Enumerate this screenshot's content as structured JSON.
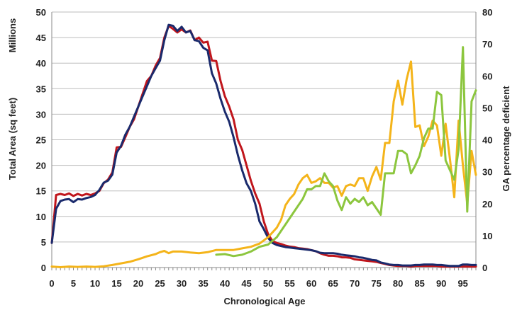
{
  "chart_data": {
    "type": "line",
    "xlabel": "Chronological Age",
    "ylabel": "Total Area (sq feet)",
    "ylabel_units": "Millions",
    "y2label": "GA percentage deficient",
    "xlim": [
      0,
      98
    ],
    "ylim": [
      0,
      50
    ],
    "y2lim": [
      0,
      80
    ],
    "x_ticks": [
      0,
      5,
      10,
      15,
      20,
      25,
      30,
      35,
      40,
      45,
      50,
      55,
      60,
      65,
      70,
      75,
      80,
      85,
      90,
      95
    ],
    "y_ticks": [
      0,
      5,
      10,
      15,
      20,
      25,
      30,
      35,
      40,
      45,
      50
    ],
    "y2_ticks": [
      0,
      10,
      20,
      30,
      40,
      50,
      60,
      70,
      80
    ],
    "grid": "horizontal",
    "legend": "none",
    "series": [
      {
        "color": "#c0161c",
        "axis": "left",
        "points": [
          [
            0,
            4.8
          ],
          [
            1,
            14.2
          ],
          [
            2,
            14.4
          ],
          [
            3,
            14.2
          ],
          [
            4,
            14.5
          ],
          [
            5,
            14.0
          ],
          [
            6,
            14.4
          ],
          [
            7,
            14.1
          ],
          [
            8,
            14.4
          ],
          [
            9,
            14.2
          ],
          [
            10,
            14.5
          ],
          [
            11,
            15.0
          ],
          [
            12,
            16.5
          ],
          [
            13,
            17.2
          ],
          [
            14,
            18.6
          ],
          [
            15,
            23.5
          ],
          [
            16,
            23.6
          ],
          [
            17,
            25.5
          ],
          [
            18,
            27.5
          ],
          [
            19,
            29.0
          ],
          [
            20,
            31.5
          ],
          [
            21,
            34.0
          ],
          [
            22,
            36.5
          ],
          [
            23,
            37.5
          ],
          [
            24,
            39.5
          ],
          [
            25,
            41.0
          ],
          [
            26,
            45.0
          ],
          [
            27,
            47.3
          ],
          [
            28,
            46.7
          ],
          [
            29,
            46.0
          ],
          [
            30,
            46.6
          ],
          [
            31,
            46.0
          ],
          [
            32,
            46.4
          ],
          [
            33,
            44.5
          ],
          [
            34,
            45.0
          ],
          [
            35,
            44.0
          ],
          [
            36,
            44.2
          ],
          [
            37,
            40.5
          ],
          [
            38,
            40.4
          ],
          [
            39,
            36.5
          ],
          [
            40,
            33.5
          ],
          [
            41,
            31.5
          ],
          [
            42,
            29.0
          ],
          [
            43,
            25.0
          ],
          [
            44,
            23.0
          ],
          [
            45,
            20.0
          ],
          [
            46,
            17.0
          ],
          [
            47,
            14.5
          ],
          [
            48,
            12.5
          ],
          [
            49,
            9.0
          ],
          [
            50,
            6.5
          ],
          [
            51,
            5.2
          ],
          [
            52,
            4.8
          ],
          [
            53,
            4.6
          ],
          [
            54,
            4.3
          ],
          [
            55,
            4.1
          ],
          [
            56,
            4.0
          ],
          [
            57,
            3.8
          ],
          [
            58,
            3.7
          ],
          [
            59,
            3.6
          ],
          [
            60,
            3.4
          ],
          [
            61,
            3.2
          ],
          [
            62,
            2.8
          ],
          [
            63,
            2.5
          ],
          [
            64,
            2.3
          ],
          [
            65,
            2.3
          ],
          [
            66,
            2.2
          ],
          [
            67,
            2.0
          ],
          [
            68,
            2.0
          ],
          [
            69,
            1.9
          ],
          [
            70,
            1.6
          ],
          [
            71,
            1.5
          ],
          [
            72,
            1.4
          ],
          [
            73,
            1.3
          ],
          [
            74,
            1.2
          ],
          [
            75,
            1.1
          ],
          [
            76,
            0.9
          ],
          [
            77,
            0.7
          ],
          [
            78,
            0.5
          ],
          [
            79,
            0.4
          ],
          [
            80,
            0.3
          ],
          [
            81,
            0.3
          ],
          [
            82,
            0.3
          ],
          [
            83,
            0.2
          ],
          [
            84,
            0.3
          ],
          [
            85,
            0.3
          ],
          [
            86,
            0.3
          ],
          [
            87,
            0.3
          ],
          [
            88,
            0.3
          ],
          [
            89,
            0.3
          ],
          [
            90,
            0.2
          ],
          [
            91,
            0.2
          ],
          [
            92,
            0.2
          ],
          [
            93,
            0.2
          ],
          [
            94,
            0.2
          ],
          [
            95,
            0.2
          ],
          [
            96,
            0.2
          ],
          [
            97,
            0.2
          ],
          [
            98,
            0.2
          ]
        ]
      },
      {
        "color": "#1a2a6c",
        "axis": "left",
        "points": [
          [
            0,
            4.8
          ],
          [
            1,
            11.5
          ],
          [
            2,
            13.0
          ],
          [
            3,
            13.3
          ],
          [
            4,
            13.4
          ],
          [
            5,
            12.8
          ],
          [
            6,
            13.4
          ],
          [
            7,
            13.3
          ],
          [
            8,
            13.6
          ],
          [
            9,
            13.8
          ],
          [
            10,
            14.2
          ],
          [
            11,
            15.2
          ],
          [
            12,
            16.6
          ],
          [
            13,
            17.0
          ],
          [
            14,
            18.2
          ],
          [
            15,
            22.5
          ],
          [
            16,
            23.8
          ],
          [
            17,
            26.0
          ],
          [
            18,
            27.5
          ],
          [
            19,
            29.5
          ],
          [
            20,
            31.5
          ],
          [
            21,
            33.5
          ],
          [
            22,
            35.5
          ],
          [
            23,
            37.5
          ],
          [
            24,
            39.0
          ],
          [
            25,
            40.5
          ],
          [
            26,
            44.5
          ],
          [
            27,
            47.5
          ],
          [
            28,
            47.3
          ],
          [
            29,
            46.3
          ],
          [
            30,
            47.1
          ],
          [
            31,
            46.0
          ],
          [
            32,
            46.3
          ],
          [
            33,
            44.5
          ],
          [
            34,
            44.3
          ],
          [
            35,
            43.0
          ],
          [
            36,
            42.5
          ],
          [
            37,
            38.0
          ],
          [
            38,
            36.0
          ],
          [
            39,
            33.0
          ],
          [
            40,
            30.5
          ],
          [
            41,
            28.5
          ],
          [
            42,
            25.5
          ],
          [
            43,
            22.0
          ],
          [
            44,
            19.0
          ],
          [
            45,
            16.5
          ],
          [
            46,
            15.0
          ],
          [
            47,
            12.5
          ],
          [
            48,
            9.0
          ],
          [
            49,
            7.5
          ],
          [
            50,
            5.8
          ],
          [
            51,
            4.8
          ],
          [
            52,
            4.4
          ],
          [
            53,
            4.2
          ],
          [
            54,
            4.0
          ],
          [
            55,
            3.9
          ],
          [
            56,
            3.8
          ],
          [
            57,
            3.7
          ],
          [
            58,
            3.6
          ],
          [
            59,
            3.5
          ],
          [
            60,
            3.4
          ],
          [
            61,
            3.2
          ],
          [
            62,
            2.9
          ],
          [
            63,
            2.8
          ],
          [
            64,
            2.8
          ],
          [
            65,
            2.8
          ],
          [
            66,
            2.7
          ],
          [
            67,
            2.5
          ],
          [
            68,
            2.4
          ],
          [
            69,
            2.3
          ],
          [
            70,
            2.2
          ],
          [
            71,
            2.0
          ],
          [
            72,
            1.9
          ],
          [
            73,
            1.7
          ],
          [
            74,
            1.5
          ],
          [
            75,
            1.4
          ],
          [
            76,
            1.0
          ],
          [
            77,
            0.8
          ],
          [
            78,
            0.6
          ],
          [
            79,
            0.5
          ],
          [
            80,
            0.5
          ],
          [
            81,
            0.4
          ],
          [
            82,
            0.4
          ],
          [
            83,
            0.4
          ],
          [
            84,
            0.5
          ],
          [
            85,
            0.5
          ],
          [
            86,
            0.6
          ],
          [
            87,
            0.6
          ],
          [
            88,
            0.6
          ],
          [
            89,
            0.5
          ],
          [
            90,
            0.5
          ],
          [
            91,
            0.4
          ],
          [
            92,
            0.3
          ],
          [
            93,
            0.3
          ],
          [
            94,
            0.3
          ],
          [
            95,
            0.6
          ],
          [
            96,
            0.6
          ],
          [
            97,
            0.5
          ],
          [
            98,
            0.5
          ]
        ]
      },
      {
        "color": "#f4b41a",
        "axis": "right",
        "points": [
          [
            0,
            0.3
          ],
          [
            2,
            0.1
          ],
          [
            4,
            0.3
          ],
          [
            6,
            0.2
          ],
          [
            8,
            0.3
          ],
          [
            10,
            0.2
          ],
          [
            12,
            0.4
          ],
          [
            14,
            0.8
          ],
          [
            16,
            1.3
          ],
          [
            18,
            1.8
          ],
          [
            20,
            2.6
          ],
          [
            22,
            3.5
          ],
          [
            24,
            4.2
          ],
          [
            25,
            4.8
          ],
          [
            26,
            5.2
          ],
          [
            27,
            4.5
          ],
          [
            28,
            5.0
          ],
          [
            30,
            5.0
          ],
          [
            32,
            4.7
          ],
          [
            34,
            4.5
          ],
          [
            36,
            4.8
          ],
          [
            38,
            5.5
          ],
          [
            40,
            5.5
          ],
          [
            42,
            5.5
          ],
          [
            44,
            6.0
          ],
          [
            46,
            6.5
          ],
          [
            48,
            7.5
          ],
          [
            50,
            9.5
          ],
          [
            52,
            12.5
          ],
          [
            53,
            15.0
          ],
          [
            54,
            19.5
          ],
          [
            55,
            21.5
          ],
          [
            56,
            23.0
          ],
          [
            57,
            26.0
          ],
          [
            58,
            28.0
          ],
          [
            59,
            29.0
          ],
          [
            60,
            26.5
          ],
          [
            61,
            27.0
          ],
          [
            62,
            28.0
          ],
          [
            63,
            26.5
          ],
          [
            64,
            26.5
          ],
          [
            65,
            25.0
          ],
          [
            66,
            25.5
          ],
          [
            67,
            22.5
          ],
          [
            68,
            25.5
          ],
          [
            69,
            26.0
          ],
          [
            70,
            25.5
          ],
          [
            71,
            28.0
          ],
          [
            72,
            28.0
          ],
          [
            73,
            24.0
          ],
          [
            74,
            28.5
          ],
          [
            75,
            31.5
          ],
          [
            76,
            27.5
          ],
          [
            77,
            39.0
          ],
          [
            78,
            39.0
          ],
          [
            79,
            52.0
          ],
          [
            80,
            58.5
          ],
          [
            81,
            51.0
          ],
          [
            82,
            59.0
          ],
          [
            83,
            64.5
          ],
          [
            84,
            44.0
          ],
          [
            85,
            44.5
          ],
          [
            86,
            38.0
          ],
          [
            87,
            41.0
          ],
          [
            88,
            46.0
          ],
          [
            89,
            44.5
          ],
          [
            90,
            35.0
          ],
          [
            91,
            45.0
          ],
          [
            92,
            34.0
          ],
          [
            93,
            22.0
          ],
          [
            94,
            46.0
          ],
          [
            95,
            32.0
          ],
          [
            96,
            20.0
          ],
          [
            97,
            36.5
          ],
          [
            98,
            29.0
          ]
        ]
      },
      {
        "color": "#8cc63e",
        "axis": "right",
        "points": [
          [
            38,
            4.0
          ],
          [
            40,
            4.2
          ],
          [
            42,
            3.6
          ],
          [
            44,
            4.0
          ],
          [
            46,
            5.0
          ],
          [
            48,
            6.5
          ],
          [
            50,
            7.2
          ],
          [
            52,
            9.5
          ],
          [
            54,
            13.5
          ],
          [
            56,
            17.5
          ],
          [
            58,
            21.5
          ],
          [
            59,
            24.5
          ],
          [
            60,
            24.5
          ],
          [
            61,
            25.5
          ],
          [
            62,
            25.5
          ],
          [
            63,
            29.5
          ],
          [
            64,
            27.0
          ],
          [
            65,
            25.5
          ],
          [
            66,
            21.0
          ],
          [
            67,
            18.0
          ],
          [
            68,
            22.0
          ],
          [
            69,
            20.0
          ],
          [
            70,
            21.5
          ],
          [
            71,
            20.5
          ],
          [
            72,
            22.0
          ],
          [
            73,
            19.5
          ],
          [
            74,
            20.5
          ],
          [
            75,
            18.5
          ],
          [
            76,
            16.5
          ],
          [
            77,
            29.5
          ],
          [
            78,
            29.5
          ],
          [
            79,
            29.5
          ],
          [
            80,
            36.5
          ],
          [
            81,
            36.5
          ],
          [
            82,
            35.5
          ],
          [
            83,
            29.5
          ],
          [
            84,
            32.0
          ],
          [
            85,
            35.0
          ],
          [
            86,
            40.5
          ],
          [
            87,
            43.5
          ],
          [
            88,
            43.5
          ],
          [
            89,
            55.0
          ],
          [
            90,
            54.0
          ],
          [
            91,
            33.5
          ],
          [
            92,
            30.5
          ],
          [
            93,
            27.5
          ],
          [
            94,
            37.0
          ],
          [
            95,
            69.0
          ],
          [
            96,
            17.5
          ],
          [
            97,
            52.0
          ],
          [
            98,
            55.5
          ]
        ]
      }
    ]
  }
}
